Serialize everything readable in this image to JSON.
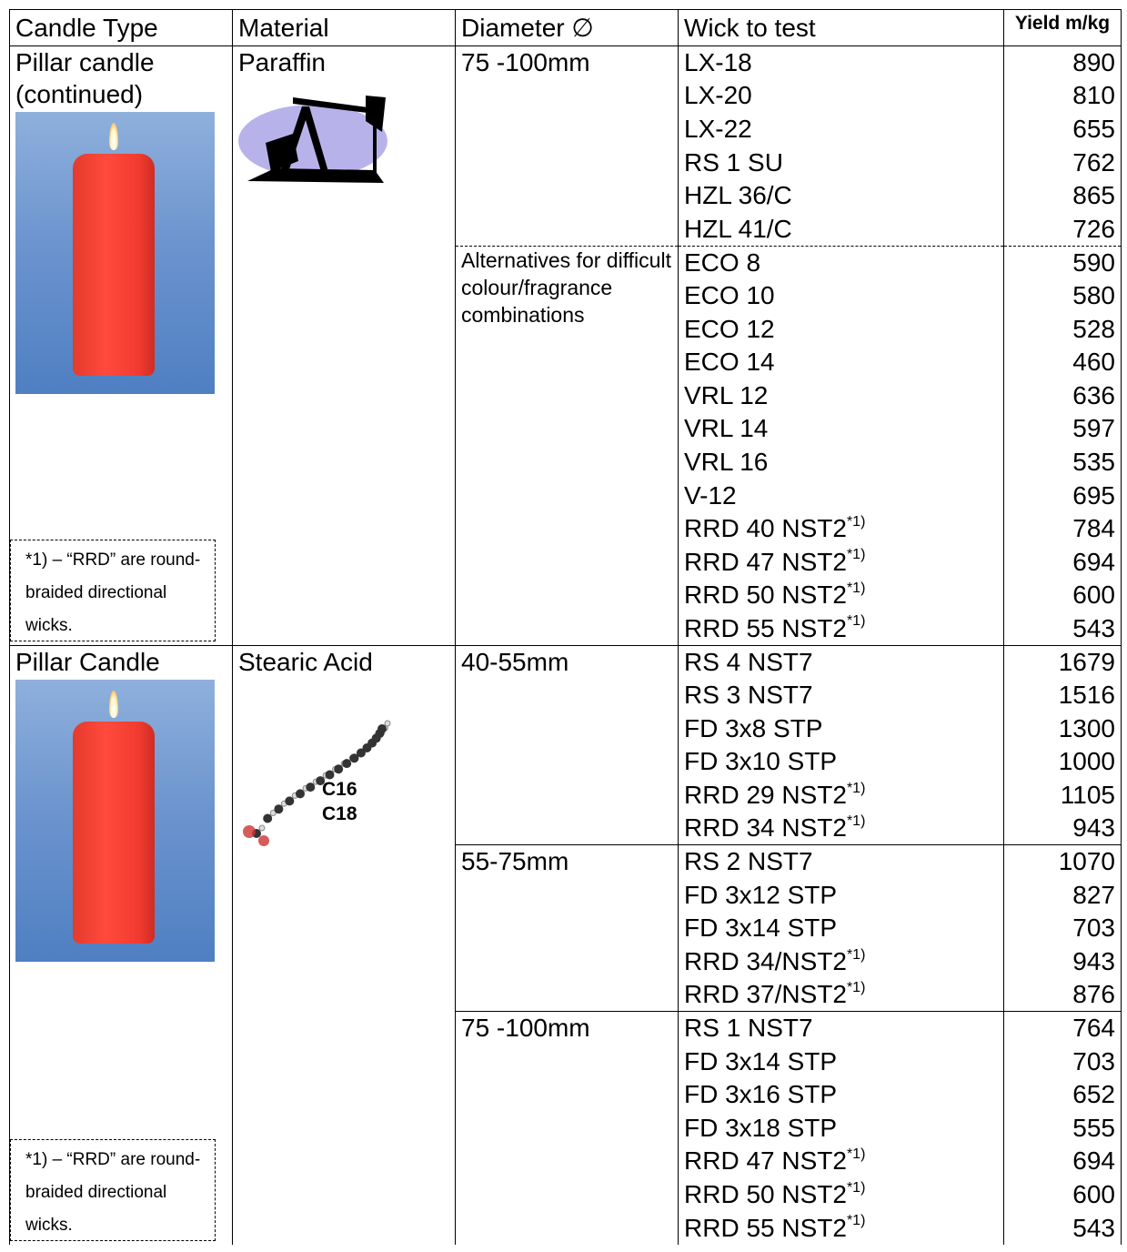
{
  "header": {
    "columns": [
      "Candle Type",
      "Material",
      "Diameter ∅",
      "Wick to test",
      "Yield m/kg"
    ]
  },
  "sections": [
    {
      "candle_type": "Pillar candle (continued)",
      "material": "Paraffin",
      "note": "*1) – “RRD” are round-braided directional wicks.",
      "group_divider": "dashed",
      "groups": [
        {
          "diameter": "75 -100mm",
          "wicks": [
            {
              "name": "LX-18",
              "yield": 890
            },
            {
              "name": "LX-20",
              "yield": 810
            },
            {
              "name": "LX-22",
              "yield": 655
            },
            {
              "name": "RS 1 SU",
              "yield": 762
            },
            {
              "name": "HZL 36/C",
              "yield": 865
            },
            {
              "name": "HZL 41/C",
              "yield": 726
            }
          ]
        },
        {
          "diameter": "Alternatives for difficult colour/fragrance combinations",
          "wicks": [
            {
              "name": "ECO 8",
              "yield": 590
            },
            {
              "name": "ECO 10",
              "yield": 580
            },
            {
              "name": "ECO 12",
              "yield": 528
            },
            {
              "name": "ECO 14",
              "yield": 460
            },
            {
              "name": "VRL 12",
              "yield": 636
            },
            {
              "name": "VRL 14",
              "yield": 597
            },
            {
              "name": "VRL 16",
              "yield": 535
            },
            {
              "name": "V-12",
              "yield": 695
            },
            {
              "name": "RRD 40 NST2",
              "mark": "*1)",
              "yield": 784
            },
            {
              "name": "RRD 47 NST2",
              "mark": "*1)",
              "yield": 694
            },
            {
              "name": "RRD 50 NST2",
              "mark": "*1)",
              "yield": 600
            },
            {
              "name": "RRD 55 NST2",
              "mark": "*1)",
              "yield": 543
            }
          ]
        }
      ]
    },
    {
      "candle_type": "Pillar Candle",
      "material": "Stearic Acid",
      "formula_labels": [
        "C16",
        "C18"
      ],
      "note": "*1) – “RRD” are round-braided directional wicks.",
      "group_divider": "solid",
      "groups": [
        {
          "diameter": "40-55mm",
          "wicks": [
            {
              "name": "RS 4 NST7",
              "yield": 1679
            },
            {
              "name": "RS 3 NST7",
              "yield": 1516
            },
            {
              "name": "FD 3x8 STP",
              "yield": 1300
            },
            {
              "name": "FD 3x10 STP",
              "yield": 1000
            },
            {
              "name": "RRD 29 NST2",
              "mark": "*1)",
              "yield": 1105
            },
            {
              "name": "RRD 34 NST2",
              "mark": "*1)",
              "yield": 943
            }
          ]
        },
        {
          "diameter": "55-75mm",
          "wicks": [
            {
              "name": "RS 2 NST7",
              "yield": 1070
            },
            {
              "name": "FD 3x12 STP",
              "yield": 827
            },
            {
              "name": "FD 3x14 STP",
              "yield": 703
            },
            {
              "name": "RRD 34/NST2",
              "mark": "*1)",
              "yield": 943
            },
            {
              "name": "RRD 37/NST2",
              "mark": "*1)",
              "yield": 876
            }
          ]
        },
        {
          "diameter": "75 -100mm",
          "wicks": [
            {
              "name": "RS 1 NST7",
              "yield": 764
            },
            {
              "name": "FD 3x14 STP",
              "yield": 703
            },
            {
              "name": "FD 3x16 STP",
              "yield": 652
            },
            {
              "name": "FD 3x18 STP",
              "yield": 555
            },
            {
              "name": "RRD 47 NST2",
              "mark": "*1)",
              "yield": 694
            },
            {
              "name": "RRD 50 NST2",
              "mark": "*1)",
              "yield": 600
            },
            {
              "name": "RRD 55 NST2",
              "mark": "*1)",
              "yield": 543
            }
          ]
        }
      ]
    }
  ]
}
